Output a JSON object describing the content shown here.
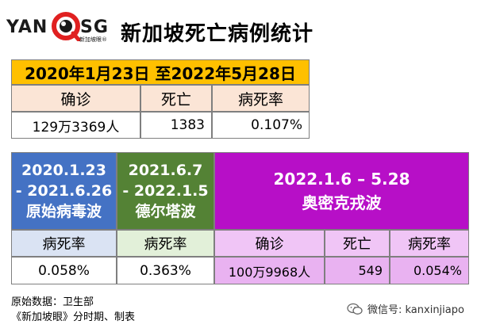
{
  "header": {
    "logo_left": "YAN",
    "logo_right": "SG",
    "logo_sub": "新加坡眼®",
    "title": "新加坡死亡病例统计"
  },
  "overall": {
    "period": "2020年1月23日 至2022年5月28日",
    "labels": [
      "确诊",
      "死亡",
      "病死率"
    ],
    "values": [
      "129万3369人",
      "1383",
      "0.107%"
    ]
  },
  "waves": [
    {
      "period_lines": [
        "2020.1.23",
        "- 2021.6.26"
      ],
      "name": "原始病毒波",
      "label": "病死率",
      "value": "0.058%",
      "color": "#4472c4"
    },
    {
      "period_lines": [
        "2021.6.7",
        "- 2022.1.5"
      ],
      "name": "德尔塔波",
      "label": "病死率",
      "value": "0.363%",
      "color": "#548235"
    },
    {
      "period_lines": [
        "2022.1.6 – 5.28"
      ],
      "name": "奥密克戎波",
      "labels": [
        "确诊",
        "死亡",
        "病死率"
      ],
      "values": [
        "100万9968人",
        "549",
        "0.054%"
      ],
      "color": "#b70fc7"
    }
  ],
  "footer": {
    "source": "原始数据：卫生部",
    "credit": "《新加坡眼》分时期、制表",
    "wechat": "微信号: kanxinjiapo"
  }
}
